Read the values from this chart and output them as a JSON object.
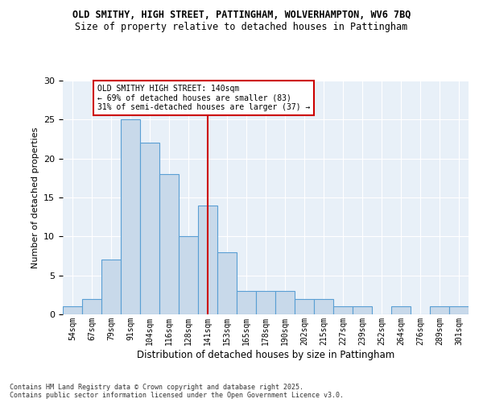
{
  "title_line1": "OLD SMITHY, HIGH STREET, PATTINGHAM, WOLVERHAMPTON, WV6 7BQ",
  "title_line2": "Size of property relative to detached houses in Pattingham",
  "xlabel": "Distribution of detached houses by size in Pattingham",
  "ylabel": "Number of detached properties",
  "categories": [
    "54sqm",
    "67sqm",
    "79sqm",
    "91sqm",
    "104sqm",
    "116sqm",
    "128sqm",
    "141sqm",
    "153sqm",
    "165sqm",
    "178sqm",
    "190sqm",
    "202sqm",
    "215sqm",
    "227sqm",
    "239sqm",
    "252sqm",
    "264sqm",
    "276sqm",
    "289sqm",
    "301sqm"
  ],
  "values": [
    1,
    2,
    7,
    25,
    22,
    18,
    10,
    14,
    8,
    3,
    3,
    3,
    2,
    2,
    1,
    1,
    0,
    1,
    0,
    1,
    1
  ],
  "bar_color": "#c8d9ea",
  "bar_edge_color": "#5a9fd4",
  "vline_x_idx": 7,
  "vline_color": "#cc0000",
  "annotation_text": "OLD SMITHY HIGH STREET: 140sqm\n← 69% of detached houses are smaller (83)\n31% of semi-detached houses are larger (37) →",
  "annotation_box_color": "#ffffff",
  "annotation_box_edge": "#cc0000",
  "ylim": [
    0,
    30
  ],
  "yticks": [
    0,
    5,
    10,
    15,
    20,
    25,
    30
  ],
  "background_color": "#e8f0f8",
  "footer_line1": "Contains HM Land Registry data © Crown copyright and database right 2025.",
  "footer_line2": "Contains public sector information licensed under the Open Government Licence v3.0."
}
